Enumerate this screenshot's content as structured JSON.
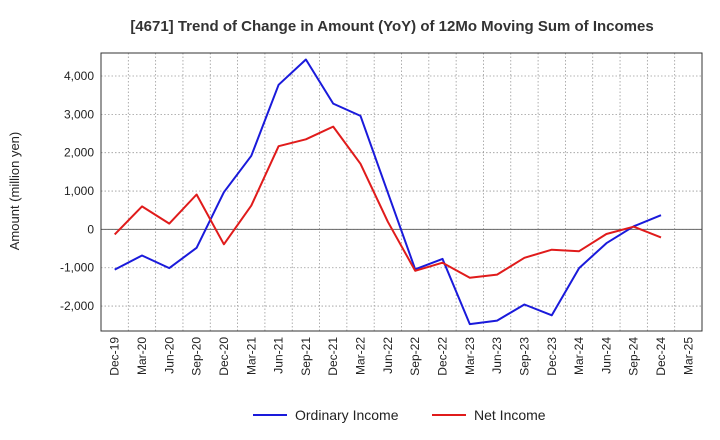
{
  "chart_data": {
    "type": "line",
    "title": "[4671]  Trend of Change in Amount (YoY) of 12Mo Moving Sum of Incomes",
    "xlabel": "",
    "ylabel": "Amount (million yen)",
    "ylim": [
      -2650,
      4600
    ],
    "yticks": [
      -2000,
      -1000,
      0,
      1000,
      2000,
      3000,
      4000
    ],
    "ytick_labels": [
      "-2,000",
      "-1,000",
      "0",
      "1,000",
      "2,000",
      "3,000",
      "4,000"
    ],
    "categories": [
      "Dec-19",
      "Mar-20",
      "Jun-20",
      "Sep-20",
      "Dec-20",
      "Mar-21",
      "Jun-21",
      "Sep-21",
      "Dec-21",
      "Mar-22",
      "Jun-22",
      "Sep-22",
      "Dec-22",
      "Mar-23",
      "Jun-23",
      "Sep-23",
      "Dec-23",
      "Mar-24",
      "Jun-24",
      "Sep-24",
      "Dec-24",
      "Mar-25"
    ],
    "grid": true,
    "legend_position": "bottom",
    "series": [
      {
        "name": "Ordinary Income",
        "color": "#1a1adb",
        "values": [
          -1050,
          -680,
          -1010,
          -480,
          970,
          1920,
          3770,
          4430,
          3280,
          2960,
          960,
          -1040,
          -770,
          -2470,
          -2380,
          -1960,
          -2240,
          -1010,
          -360,
          80,
          370,
          null
        ]
      },
      {
        "name": "Net Income",
        "color": "#e01b1b",
        "values": [
          -130,
          600,
          150,
          910,
          -390,
          620,
          2170,
          2350,
          2680,
          1710,
          200,
          -1080,
          -870,
          -1260,
          -1180,
          -740,
          -530,
          -570,
          -120,
          70,
          -210,
          null
        ]
      }
    ]
  }
}
